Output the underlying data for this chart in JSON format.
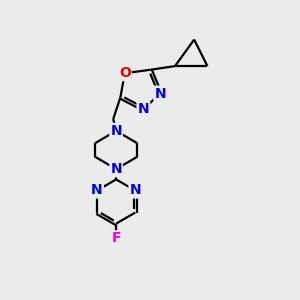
{
  "bg_color": "#ebebeb",
  "bond_color": "#000000",
  "N_color": "#0000ee",
  "O_color": "#ee0000",
  "F_color": "#ee00ee",
  "line_width": 1.6,
  "font_size": 10,
  "fig_size": [
    3.0,
    3.0
  ],
  "dpi": 100,
  "xlim": [
    0,
    10
  ],
  "ylim": [
    0,
    10
  ]
}
